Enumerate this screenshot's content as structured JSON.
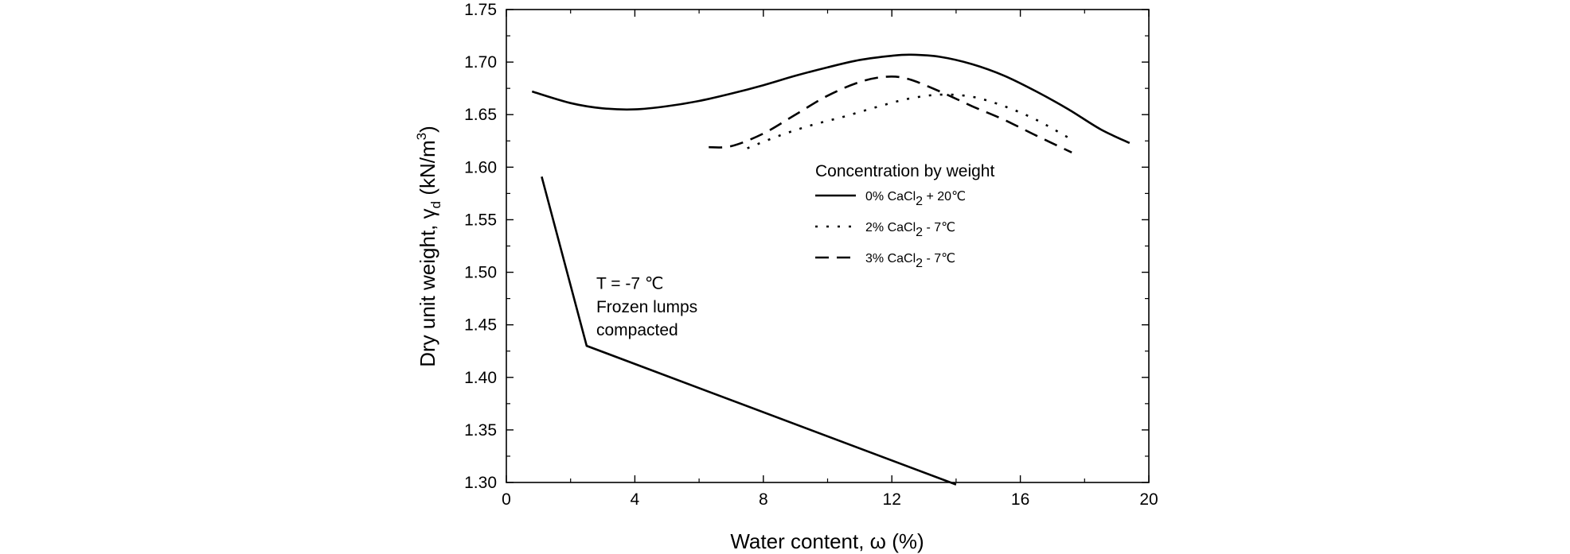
{
  "chart_data": {
    "type": "line",
    "xlabel": "Water content, ω (%)",
    "ylabel": "Dry unit weight, γ",
    "ylabel_subscript": "d",
    "ylabel_unit_prefix": " (kN/m",
    "ylabel_unit_superscript": "3",
    "ylabel_unit_suffix": ")",
    "xlim": [
      0,
      20
    ],
    "ylim": [
      1.3,
      1.75
    ],
    "x_ticks": [
      0,
      4,
      8,
      12,
      16,
      20
    ],
    "x_tick_labels": [
      "0",
      "4",
      "8",
      "12",
      "16",
      "20"
    ],
    "y_ticks": [
      1.3,
      1.35,
      1.4,
      1.45,
      1.5,
      1.55,
      1.6,
      1.65,
      1.7,
      1.75
    ],
    "y_tick_labels": [
      "1.30",
      "1.35",
      "1.40",
      "1.45",
      "1.50",
      "1.55",
      "1.60",
      "1.65",
      "1.70",
      "1.75"
    ],
    "grid": false,
    "legend": {
      "title": "Concentration by weight",
      "placement": "center-right"
    },
    "series": [
      {
        "name": "0% CaCl2 + 20℃",
        "label_parts": [
          "0% CaCl",
          "2",
          " + 20℃"
        ],
        "style": "solid",
        "x": [
          0.8,
          2.0,
          3.0,
          4.0,
          5.0,
          6.0,
          7.0,
          8.0,
          9.0,
          10.0,
          11.0,
          12.0,
          12.6,
          13.5,
          14.5,
          15.5,
          16.5,
          17.5,
          18.5,
          19.4
        ],
        "y": [
          1.672,
          1.661,
          1.656,
          1.655,
          1.658,
          1.663,
          1.67,
          1.678,
          1.687,
          1.695,
          1.702,
          1.706,
          1.707,
          1.705,
          1.698,
          1.687,
          1.672,
          1.655,
          1.636,
          1.623
        ]
      },
      {
        "name": "2% CaCl2 - 7℃",
        "label_parts": [
          "2% CaCl",
          "2",
          "  - 7℃"
        ],
        "style": "dotted",
        "x": [
          7.5,
          8.5,
          9.5,
          10.5,
          11.5,
          12.5,
          13.5,
          14.5,
          15.5,
          16.5,
          17.5
        ],
        "y": [
          1.618,
          1.63,
          1.64,
          1.648,
          1.657,
          1.665,
          1.669,
          1.667,
          1.658,
          1.645,
          1.628
        ]
      },
      {
        "name": "3% CaCl2 - 7℃",
        "label_parts": [
          "3% CaCl",
          "2",
          "  - 7℃"
        ],
        "style": "dashed",
        "x": [
          6.3,
          7.0,
          8.0,
          9.0,
          10.0,
          11.0,
          11.8,
          12.5,
          13.5,
          14.5,
          15.5,
          16.5,
          17.6
        ],
        "y": [
          1.619,
          1.62,
          1.632,
          1.65,
          1.668,
          1.681,
          1.686,
          1.684,
          1.672,
          1.658,
          1.645,
          1.63,
          1.614
        ]
      },
      {
        "name": "",
        "style": "solid",
        "x": [
          1.1,
          2.5,
          14.0
        ],
        "y": [
          1.591,
          1.43,
          1.298
        ]
      }
    ],
    "annotations": [
      {
        "text": "T = -7 ℃",
        "x": 2.8,
        "y": 1.484
      },
      {
        "text": "Frozen lumps",
        "x": 2.8,
        "y": 1.462
      },
      {
        "text": "compacted",
        "x": 2.8,
        "y": 1.44
      }
    ]
  }
}
